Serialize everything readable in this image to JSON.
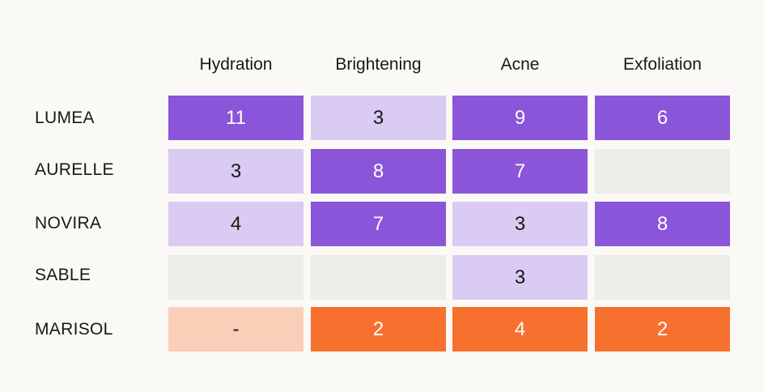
{
  "chart_data": {
    "type": "heatmap",
    "columns": [
      "Hydration",
      "Brightening",
      "Acne",
      "Exfoliation"
    ],
    "rows": [
      "LUMEA",
      "AURELLE",
      "NOVIRA",
      "SABLE",
      "MARISOL"
    ],
    "cells": [
      [
        {
          "value": "11",
          "level": "high"
        },
        {
          "value": "3",
          "level": "low"
        },
        {
          "value": "9",
          "level": "high"
        },
        {
          "value": "6",
          "level": "high"
        }
      ],
      [
        {
          "value": "3",
          "level": "low"
        },
        {
          "value": "8",
          "level": "high"
        },
        {
          "value": "7",
          "level": "high"
        },
        {
          "value": "",
          "level": "empty"
        }
      ],
      [
        {
          "value": "4",
          "level": "low"
        },
        {
          "value": "7",
          "level": "high"
        },
        {
          "value": "3",
          "level": "low"
        },
        {
          "value": "8",
          "level": "high"
        }
      ],
      [
        {
          "value": "",
          "level": "empty"
        },
        {
          "value": "",
          "level": "empty"
        },
        {
          "value": "3",
          "level": "low"
        },
        {
          "value": "",
          "level": "empty"
        }
      ],
      [
        {
          "value": "-",
          "level": "alt-low"
        },
        {
          "value": "2",
          "level": "alt-high"
        },
        {
          "value": "4",
          "level": "alt-high"
        },
        {
          "value": "2",
          "level": "alt-high"
        }
      ]
    ],
    "colors": {
      "high": "#8a55d8",
      "low": "#dacbf2",
      "empty": "#eeece8",
      "alt-high": "#f7712e",
      "alt-low": "#f9cfb7",
      "text_dark": "#1a1714",
      "text_light": "#ffffff",
      "background": "#fbf9f5"
    },
    "grid": false,
    "legend": "none"
  }
}
